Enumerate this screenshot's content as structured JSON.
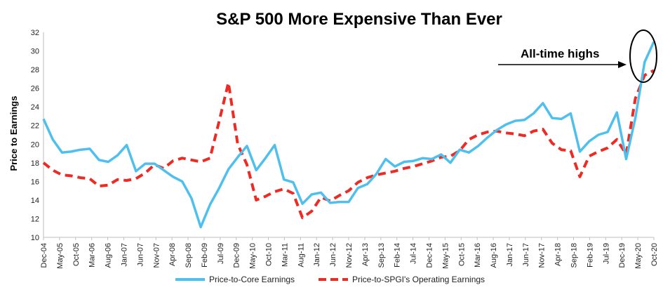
{
  "chart_data": {
    "type": "line",
    "title": "S&P 500 More Expensive Than Ever",
    "ylabel": "Price to Earnings",
    "xlabel": "",
    "ylim": [
      10,
      32
    ],
    "yticks": [
      10,
      12,
      14,
      16,
      18,
      20,
      22,
      24,
      26,
      28,
      30,
      32
    ],
    "grid": false,
    "legend_position": "bottom",
    "xtick_labels": [
      "Dec-04",
      "May-05",
      "Oct-05",
      "Mar-06",
      "Aug-06",
      "Jan-07",
      "Jun-07",
      "Nov-07",
      "Apr-08",
      "Sep-08",
      "Feb-09",
      "Jul-09",
      "Dec-09",
      "May-10",
      "Oct-10",
      "Mar-11",
      "Aug-11",
      "Jan-12",
      "Jun-12",
      "Nov-12",
      "Apr-13",
      "Sep-13",
      "Feb-14",
      "Jul-14",
      "Dec-14",
      "May-15",
      "Oct-15",
      "Mar-16",
      "Aug-16",
      "Jan-17",
      "Jun-17",
      "Nov-17",
      "Apr-18",
      "Sep-18",
      "Feb-19",
      "Jul-19",
      "Dec-19",
      "May-20",
      "Oct-20"
    ],
    "series": [
      {
        "name": "Price-to-Core Earnings",
        "color": "#4fc0ee",
        "dash": "solid",
        "values": [
          22.7,
          20.5,
          19.1,
          19.2,
          19.4,
          19.5,
          18.3,
          18.1,
          18.8,
          19.9,
          17.1,
          17.9,
          17.9,
          17.2,
          16.5,
          16.0,
          14.2,
          11.1,
          13.5,
          15.3,
          17.3,
          18.6,
          19.8,
          17.2,
          18.5,
          19.9,
          16.2,
          15.9,
          13.6,
          14.6,
          14.8,
          13.7,
          13.8,
          13.8,
          15.3,
          15.7,
          16.8,
          18.4,
          17.6,
          18.1,
          18.2,
          18.5,
          18.4,
          18.9,
          18.0,
          19.4,
          19.1,
          19.8,
          20.7,
          21.5,
          22.1,
          22.5,
          22.6,
          23.3,
          24.4,
          22.8,
          22.7,
          23.3,
          19.2,
          20.3,
          21.0,
          21.3,
          23.4,
          18.4,
          22.8,
          28.8,
          31.0
        ]
      },
      {
        "name": "Price-to-SPGI's Operating Earnings",
        "color": "#ee2a24",
        "dash": "dashed",
        "values": [
          18.0,
          17.2,
          16.7,
          16.6,
          16.4,
          16.3,
          15.5,
          15.6,
          16.2,
          16.1,
          16.3,
          16.9,
          17.8,
          17.4,
          18.2,
          18.5,
          18.3,
          18.1,
          18.5,
          22.5,
          26.6,
          20.0,
          17.8,
          14.0,
          14.4,
          14.9,
          15.2,
          14.7,
          12.1,
          12.8,
          14.3,
          13.9,
          14.5,
          15.0,
          15.9,
          16.4,
          16.7,
          16.9,
          17.1,
          17.4,
          17.6,
          17.9,
          18.2,
          18.6,
          18.7,
          19.3,
          20.5,
          21.0,
          21.3,
          21.4,
          21.2,
          21.1,
          20.9,
          21.4,
          21.6,
          20.1,
          19.4,
          19.3,
          16.5,
          18.7,
          19.2,
          19.6,
          20.5,
          18.9,
          24.9,
          27.4,
          27.9
        ]
      }
    ],
    "annotations": [
      {
        "text": "All-time highs"
      }
    ]
  }
}
